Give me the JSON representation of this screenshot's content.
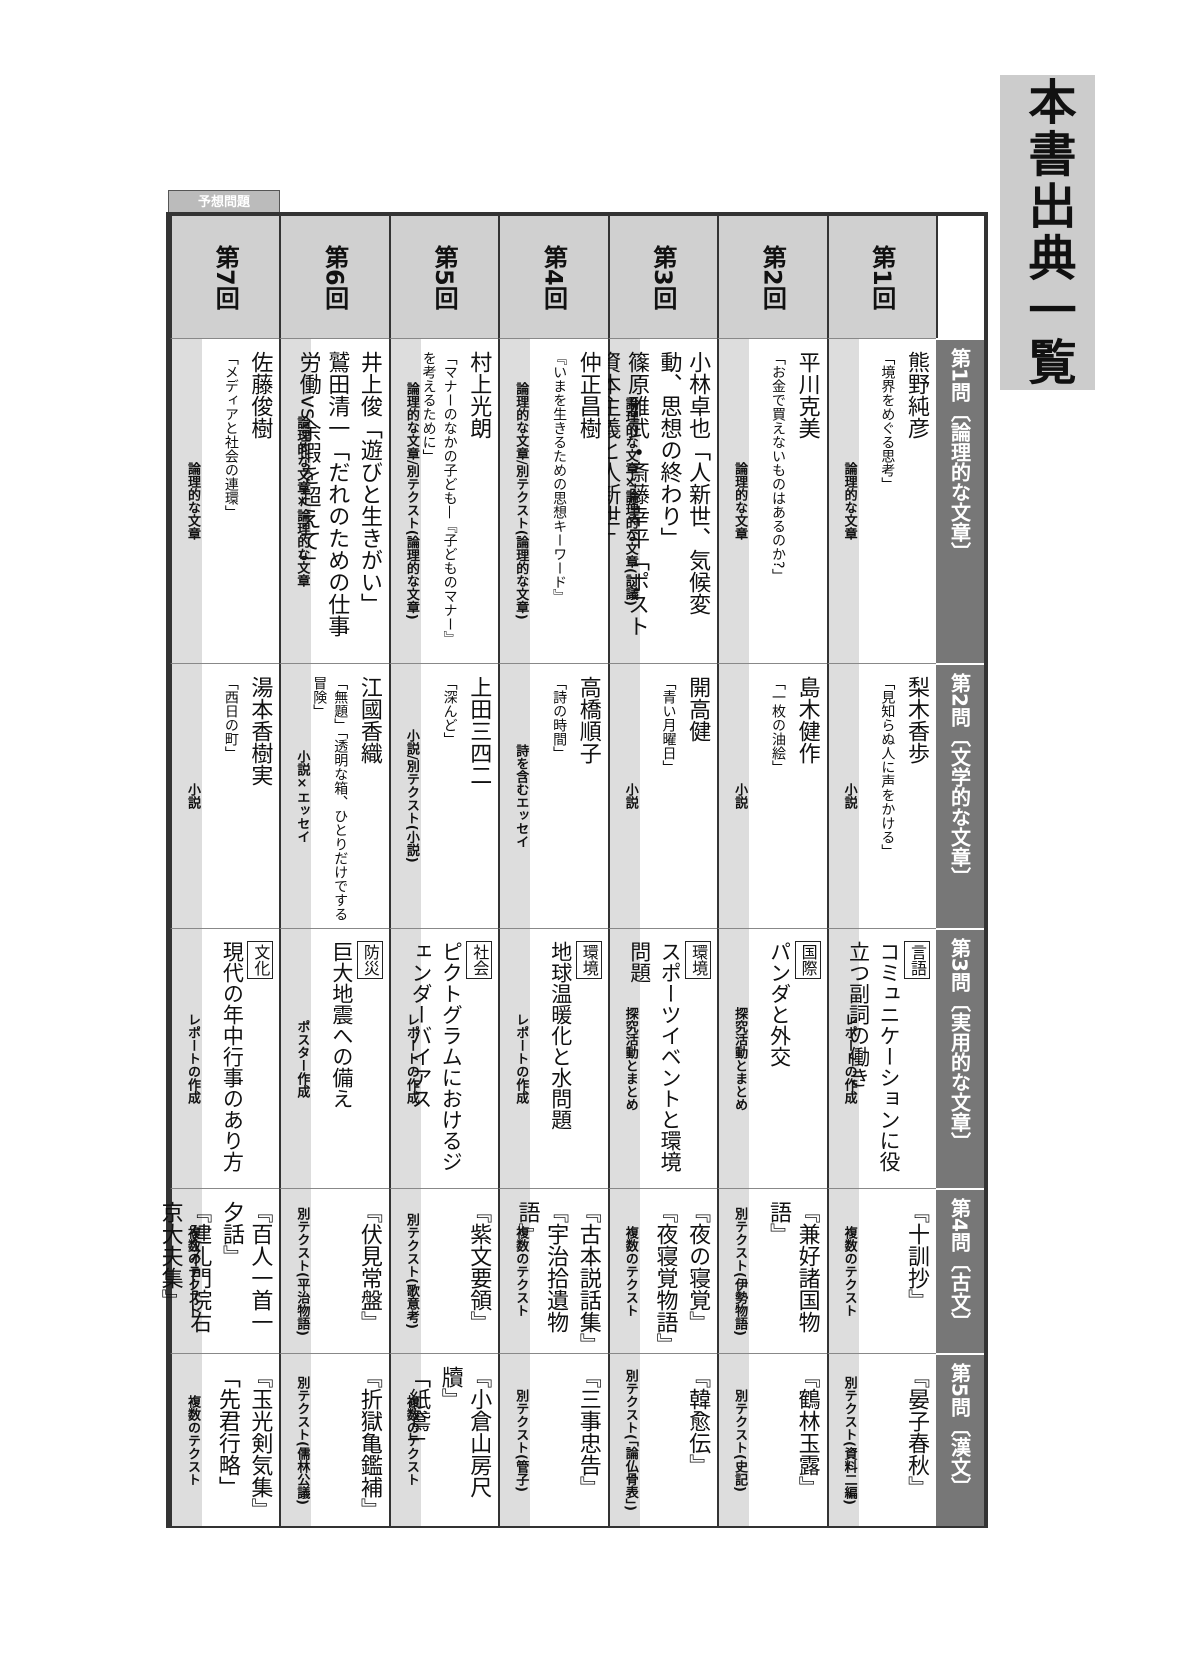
{
  "header": {
    "title": "本書出典一覧",
    "tab": "予想問題"
  },
  "rounds": [
    "第1回",
    "第2回",
    "第3回",
    "第4回",
    "第5回",
    "第6回",
    "第7回"
  ],
  "questions": [
    {
      "label": "第1問〔論理的な文章〕",
      "cells": [
        {
          "type": "論理的な文章",
          "lines": [
            "熊野純彦",
            "「境界をめぐる思考」"
          ]
        },
        {
          "type": "論理的な文章",
          "lines": [
            "平川克美",
            "「お金で買えないものはあるのか?」"
          ]
        },
        {
          "type": "論理的な文章×論理的な文章(討議)",
          "lines": [
            "小林卓也「人新世、気候変動、思想の終わり」",
            "篠原雅武・斎藤幸平「ポスト資本主義と人新世」"
          ]
        },
        {
          "type": "論理的な文章/別テクスト(論理的な文章)",
          "lines": [
            "仲正昌樹",
            "『いまを生きるための思想キーワード』"
          ]
        },
        {
          "type": "論理的な文章/別テクスト(論理的な文章)",
          "lines": [
            "村上光朗",
            "「マナーのなかの子ども—『子どものマナー』を考えるために」"
          ]
        },
        {
          "type": "論理的な文章×論理的な文章",
          "lines": [
            "井上俊「遊びと生きがい」",
            "鷲田清一「だれのための仕事　労働vs余暇を超えて」"
          ]
        },
        {
          "type": "論理的な文章",
          "lines": [
            "佐藤俊樹",
            "「メディアと社会の連環」"
          ]
        }
      ]
    },
    {
      "label": "第2問〔文学的な文章〕",
      "cells": [
        {
          "type": "小説",
          "lines": [
            "梨木香歩",
            "「見知らぬ人に声をかける」"
          ]
        },
        {
          "type": "小説",
          "lines": [
            "島木健作",
            "「一枚の油絵」"
          ]
        },
        {
          "type": "小説",
          "lines": [
            "開高健",
            "「青い月曜日」"
          ]
        },
        {
          "type": "詩を含むエッセイ",
          "lines": [
            "高橋順子",
            "「詩の時間」"
          ]
        },
        {
          "type": "小説/別テクスト(小説)",
          "lines": [
            "上田三四二",
            "「深んど」"
          ]
        },
        {
          "type": "小説×エッセイ",
          "lines": [
            "江國香織",
            "「無題」「透明な箱、ひとりだけでする冒険」"
          ]
        },
        {
          "type": "小説",
          "lines": [
            "湯本香樹実",
            "「西日の町」"
          ]
        }
      ]
    },
    {
      "label": "第3問〔実用的な文章〕",
      "cells": [
        {
          "type": "レポートの作成",
          "tag": "言語",
          "lines": [
            "コミュニケーションに役立つ副詞の働き"
          ]
        },
        {
          "type": "探究活動とまとめ",
          "tag": "国際",
          "lines": [
            "パンダと外交"
          ]
        },
        {
          "type": "探究活動とまとめ",
          "tag": "環境",
          "lines": [
            "スポーツイベントと環境問題"
          ]
        },
        {
          "type": "レポートの作成",
          "tag": "環境",
          "lines": [
            "地球温暖化と水問題"
          ]
        },
        {
          "type": "レポートの作成",
          "tag": "社会",
          "lines": [
            "ピクトグラムにおけるジェンダーバイアス"
          ]
        },
        {
          "type": "ポスター作成",
          "tag": "防災",
          "lines": [
            "巨大地震への備え"
          ]
        },
        {
          "type": "レポートの作成",
          "tag": "文化",
          "lines": [
            "現代の年中行事のあり方"
          ]
        }
      ]
    },
    {
      "label": "第4問〔古文〕",
      "cells": [
        {
          "type": "複数のテクスト",
          "lines": [
            "『十訓抄』"
          ]
        },
        {
          "type": "別テクスト(伊勢物語)",
          "lines": [
            "『兼好諸国物語』"
          ]
        },
        {
          "type": "複数のテクスト",
          "lines": [
            "『夜の寝覚』",
            "『夜寝覚物語』"
          ]
        },
        {
          "type": "複数のテクスト",
          "lines": [
            "『古本説話集』",
            "『宇治拾遺物語』"
          ]
        },
        {
          "type": "別テクスト(歌意考)",
          "lines": [
            "『紫文要領』"
          ]
        },
        {
          "type": "別テクスト(平治物語)",
          "lines": [
            "『伏見常盤』"
          ]
        },
        {
          "type": "複数のテクスト",
          "lines": [
            "『百人一首一夕話』",
            "『建礼門院右京大夫集』"
          ]
        }
      ]
    },
    {
      "label": "第5問〔漢文〕",
      "cells": [
        {
          "type": "別テクスト(資料二編)",
          "lines": [
            "『晏子春秋』"
          ]
        },
        {
          "type": "別テクスト(史記)",
          "lines": [
            "『鶴林玉露』"
          ]
        },
        {
          "type": "別テクスト(「論仏骨表」)",
          "lines": [
            "『韓愈伝』"
          ]
        },
        {
          "type": "別テクスト(管子)",
          "lines": [
            "『三事忠告』"
          ]
        },
        {
          "type": "複数のテクスト",
          "lines": [
            "『小倉山房尺牘』",
            "「紙鳶」"
          ]
        },
        {
          "type": "別テクスト(儒林公議)",
          "lines": [
            "『折獄亀鑑補』"
          ]
        },
        {
          "type": "複数のテクスト",
          "lines": [
            "『玉光剣気集』",
            "「先君行略」"
          ]
        }
      ]
    }
  ]
}
